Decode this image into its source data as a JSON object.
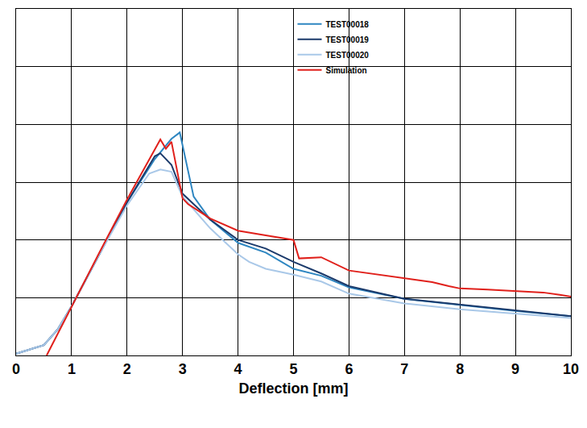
{
  "chart_data": {
    "type": "line",
    "x_label": "Deflection [mm]",
    "xlim": [
      0,
      10
    ],
    "xticks": [
      0,
      1,
      2,
      3,
      4,
      5,
      6,
      7,
      8,
      9,
      10
    ],
    "ylim": [
      0,
      6
    ],
    "yticks": [
      0,
      1,
      2,
      3,
      4,
      5,
      6
    ],
    "tick_labels": "x",
    "grid": true,
    "legend": "upper center",
    "series": [
      {
        "name": "TEST00018",
        "color": "#2e86c1",
        "line_style": "solid",
        "x": [
          0,
          0.5,
          0.75,
          1,
          1.5,
          2,
          2.5,
          2.8,
          2.95,
          3.05,
          3.2,
          3.5,
          4,
          4.5,
          5,
          5.5,
          6,
          7,
          8,
          9,
          10
        ],
        "values": [
          0.03,
          0.18,
          0.45,
          0.85,
          1.75,
          2.65,
          3.4,
          3.75,
          3.86,
          3.4,
          2.75,
          2.35,
          1.95,
          1.78,
          1.5,
          1.38,
          1.18,
          0.98,
          0.87,
          0.77,
          0.68
        ]
      },
      {
        "name": "TEST00019",
        "color": "#1b3a6b",
        "line_style": "solid",
        "x": [
          0,
          0.5,
          0.75,
          1,
          1.5,
          2,
          2.5,
          2.6,
          2.8,
          3,
          3.5,
          4,
          4.5,
          5,
          5.5,
          6,
          7,
          8,
          9,
          10
        ],
        "values": [
          0.03,
          0.18,
          0.45,
          0.85,
          1.75,
          2.65,
          3.45,
          3.5,
          3.3,
          2.8,
          2.35,
          2.0,
          1.85,
          1.62,
          1.42,
          1.2,
          0.98,
          0.88,
          0.78,
          0.68
        ]
      },
      {
        "name": "TEST00020",
        "color": "#a9c8e8",
        "line_style": "solid",
        "x": [
          0,
          0.5,
          0.75,
          1,
          1.5,
          2,
          2.4,
          2.6,
          2.8,
          3,
          3.5,
          4,
          4.2,
          4.5,
          5,
          5.5,
          6,
          7,
          8,
          9,
          10
        ],
        "values": [
          0.03,
          0.18,
          0.45,
          0.85,
          1.75,
          2.6,
          3.15,
          3.22,
          3.18,
          2.75,
          2.2,
          1.75,
          1.62,
          1.5,
          1.4,
          1.28,
          1.07,
          0.9,
          0.8,
          0.72,
          0.65
        ]
      },
      {
        "name": "Simulation",
        "color": "#e0201b",
        "line_style": "solid",
        "x": [
          0.55,
          1,
          1.5,
          2,
          2.6,
          2.7,
          2.8,
          3,
          3.1,
          3.5,
          4,
          4.5,
          5,
          5.1,
          5.5,
          6,
          6.5,
          7,
          7.5,
          7.8,
          8,
          8.5,
          9,
          9.5,
          9.8,
          10
        ],
        "values": [
          0,
          0.85,
          1.78,
          2.7,
          3.74,
          3.58,
          3.7,
          2.72,
          2.62,
          2.37,
          2.16,
          2.08,
          2.0,
          1.68,
          1.7,
          1.47,
          1.4,
          1.33,
          1.27,
          1.2,
          1.16,
          1.14,
          1.12,
          1.09,
          1.05,
          1.02
        ]
      }
    ]
  }
}
